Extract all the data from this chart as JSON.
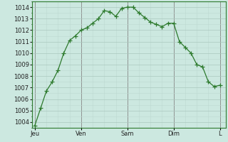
{
  "x_values": [
    0,
    1,
    2,
    3,
    4,
    5,
    6,
    7,
    8,
    9,
    10,
    11,
    12,
    13,
    14,
    15,
    16,
    17,
    18,
    19,
    20,
    21,
    22,
    23,
    24,
    25,
    26,
    27,
    28,
    29,
    30,
    31,
    32
  ],
  "y_values": [
    1003.7,
    1005.2,
    1006.7,
    1007.5,
    1008.5,
    1010.0,
    1011.1,
    1011.5,
    1012.0,
    1012.2,
    1012.6,
    1013.0,
    1013.7,
    1013.6,
    1013.2,
    1013.9,
    1014.0,
    1014.0,
    1013.5,
    1013.1,
    1012.7,
    1012.5,
    1012.3,
    1012.6,
    1012.6,
    1011.0,
    1010.5,
    1010.0,
    1009.0,
    1008.8,
    1007.5,
    1007.1,
    1007.2
  ],
  "line_color": "#2d7a2d",
  "marker": "+",
  "marker_size": 4,
  "marker_color": "#2d7a2d",
  "background_color": "#cce8e0",
  "grid_color_major": "#aac8be",
  "grid_color_minor": "#bdd8d0",
  "ylim": [
    1003.5,
    1014.5
  ],
  "yticks": [
    1004,
    1005,
    1006,
    1007,
    1008,
    1009,
    1010,
    1011,
    1012,
    1013,
    1014
  ],
  "day_labels": [
    "Jeu",
    "Ven",
    "Sam",
    "Dim",
    "L"
  ],
  "day_positions": [
    0,
    8,
    16,
    24,
    32
  ],
  "vline_color": "#888888",
  "tick_label_color": "#222222",
  "tick_fontsize": 6,
  "xlim": [
    -0.5,
    33
  ]
}
